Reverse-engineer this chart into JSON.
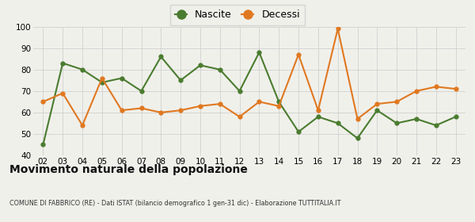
{
  "years": [
    "02",
    "03",
    "04",
    "05",
    "06",
    "07",
    "08",
    "09",
    "10",
    "11",
    "12",
    "13",
    "14",
    "15",
    "16",
    "17",
    "18",
    "19",
    "20",
    "21",
    "22",
    "23"
  ],
  "nascite": [
    45,
    83,
    80,
    74,
    76,
    70,
    86,
    75,
    82,
    80,
    70,
    88,
    65,
    51,
    58,
    55,
    48,
    61,
    55,
    57,
    54,
    58
  ],
  "decessi": [
    65,
    69,
    54,
    76,
    61,
    62,
    60,
    61,
    63,
    64,
    58,
    65,
    63,
    87,
    61,
    99,
    57,
    64,
    65,
    70,
    72,
    71
  ],
  "nascite_color": "#4a7c2f",
  "decessi_color": "#e07820",
  "title": "Movimento naturale della popolazione",
  "subtitle": "COMUNE DI FABBRICO (RE) - Dati ISTAT (bilancio demografico 1 gen-31 dic) - Elaborazione TUTTITALIA.IT",
  "ylabel_min": 40,
  "ylabel_max": 100,
  "yticks": [
    40,
    50,
    60,
    70,
    80,
    90,
    100
  ],
  "legend_nascite": "Nascite",
  "legend_decessi": "Decessi",
  "background_color": "#f0f0eb",
  "grid_color": "#d0d0d0",
  "marker": "o",
  "markersize": 3.5,
  "linewidth": 1.5
}
